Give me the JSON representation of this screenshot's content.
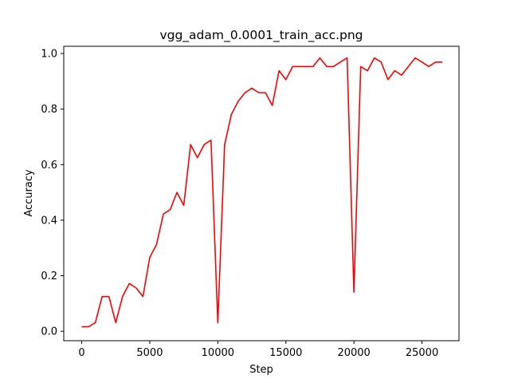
{
  "chart_data": {
    "type": "line",
    "title": "vgg_adam_0.0001_train_acc.png",
    "xlabel": "Step",
    "ylabel": "Accuracy",
    "xlim": [
      -1320,
      27720
    ],
    "ylim": [
      -0.034,
      1.026
    ],
    "xticks": [
      0,
      5000,
      10000,
      15000,
      20000,
      25000
    ],
    "yticks": [
      0.0,
      0.2,
      0.4,
      0.6,
      0.8,
      1.0
    ],
    "grid": false,
    "series": [
      {
        "color": "#ff0000",
        "x": [
          0,
          500,
          1000,
          1500,
          2000,
          2500,
          3000,
          3500,
          4000,
          4500,
          5000,
          5500,
          6000,
          6500,
          7000,
          7500,
          8000,
          8500,
          9000,
          9500,
          10000,
          10500,
          11000,
          11500,
          12000,
          12500,
          13000,
          13500,
          14000,
          14500,
          15000,
          15500,
          16000,
          16500,
          17000,
          17500,
          18000,
          18500,
          19000,
          19500,
          20000,
          20500,
          21000,
          21500,
          22000,
          22500,
          23000,
          23500,
          24000,
          24500,
          25000,
          25500,
          26000,
          26500
        ],
        "y": [
          0.016,
          0.016,
          0.031,
          0.125,
          0.125,
          0.031,
          0.125,
          0.172,
          0.156,
          0.125,
          0.266,
          0.313,
          0.422,
          0.438,
          0.5,
          0.453,
          0.672,
          0.625,
          0.672,
          0.688,
          0.031,
          0.672,
          0.781,
          0.828,
          0.859,
          0.875,
          0.859,
          0.859,
          0.813,
          0.938,
          0.906,
          0.953,
          0.953,
          0.953,
          0.953,
          0.984,
          0.953,
          0.953,
          0.969,
          0.984,
          0.141,
          0.953,
          0.938,
          0.984,
          0.969,
          0.906,
          0.938,
          0.922,
          0.953,
          0.984,
          0.969,
          0.953,
          0.969,
          0.969
        ]
      }
    ]
  }
}
